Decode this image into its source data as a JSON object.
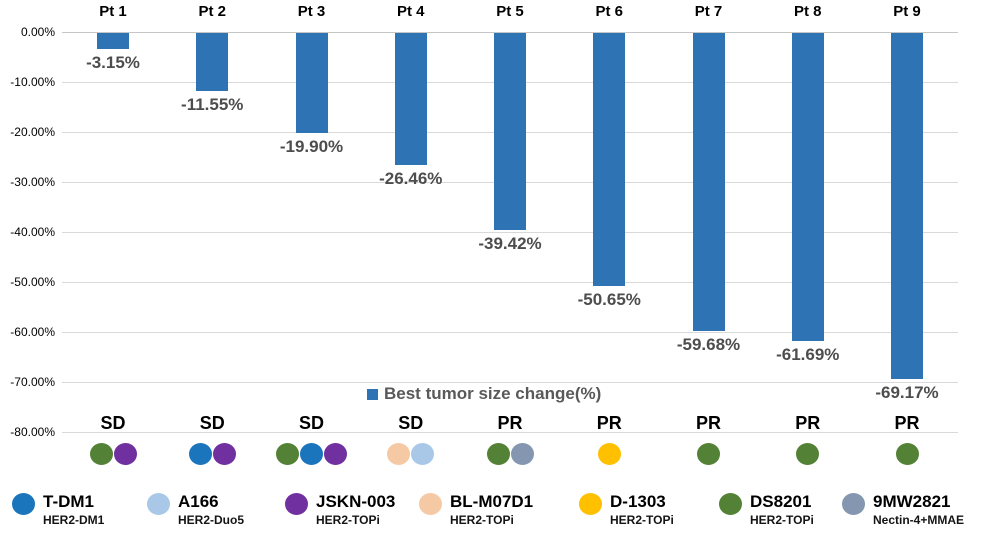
{
  "chart_data": {
    "type": "bar",
    "series_label": "Best tumor size change(%)",
    "categories": [
      "Pt 1",
      "Pt 2",
      "Pt 3",
      "Pt 4",
      "Pt 5",
      "Pt 6",
      "Pt 7",
      "Pt 8",
      "Pt 9"
    ],
    "values": [
      -3.15,
      -11.55,
      -19.9,
      -26.46,
      -39.42,
      -50.65,
      -59.68,
      -61.69,
      -69.17
    ],
    "value_labels": [
      "-3.15%",
      "-11.55%",
      "-19.90%",
      "-26.46%",
      "-39.42%",
      "-50.65%",
      "-59.68%",
      "-61.69%",
      "-69.17%"
    ],
    "responses": [
      "SD",
      "SD",
      "SD",
      "SD",
      "PR",
      "PR",
      "PR",
      "PR",
      "PR"
    ],
    "patient_drugs": [
      [
        "DS8201",
        "JSKN-003"
      ],
      [
        "T-DM1",
        "JSKN-003"
      ],
      [
        "DS8201",
        "T-DM1",
        "JSKN-003"
      ],
      [
        "BL-M07D1",
        "A166"
      ],
      [
        "DS8201",
        "9MW2821"
      ],
      [
        "D-1303"
      ],
      [
        "DS8201"
      ],
      [
        "DS8201"
      ],
      [
        "DS8201"
      ]
    ],
    "ylim": [
      -80,
      0
    ],
    "ytick_labels": [
      "0.00%",
      "-10.00%",
      "-20.00%",
      "-30.00%",
      "-40.00%",
      "-50.00%",
      "-60.00%",
      "-70.00%",
      "-80.00%"
    ],
    "bar_color": "#2E74B5",
    "grid_color": "#D9D9D9",
    "legend_position": "inside-bottom-center",
    "grid": "horizontal-on"
  },
  "drug_legend": [
    {
      "name": "T-DM1",
      "mechanism": "HER2-DM1",
      "color": "#1B75BC"
    },
    {
      "name": "A166",
      "mechanism": "HER2-Duo5",
      "color": "#A9C8E8"
    },
    {
      "name": "JSKN-003",
      "mechanism": "HER2-TOPi",
      "color": "#7030A0"
    },
    {
      "name": "BL-M07D1",
      "mechanism": "HER2-TOPi",
      "color": "#F6C9A5"
    },
    {
      "name": "D-1303",
      "mechanism": "HER2-TOPi",
      "color": "#FFC000"
    },
    {
      "name": "DS8201",
      "mechanism": "HER2-TOPi",
      "color": "#538135"
    },
    {
      "name": "9MW2821",
      "mechanism": "Nectin-4+MMAE",
      "color": "#8496B0"
    }
  ]
}
